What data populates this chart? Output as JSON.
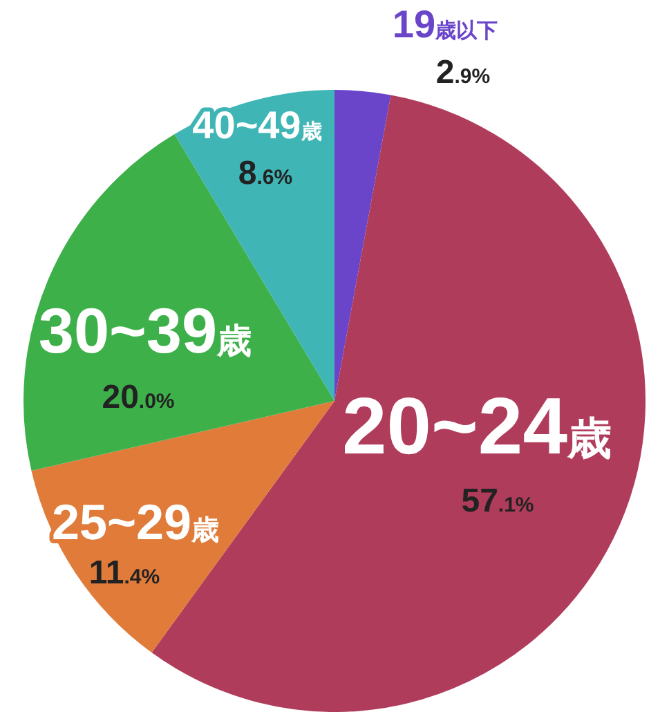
{
  "chart_data": {
    "type": "pie",
    "categories": [
      "19歳以下",
      "20~24歳",
      "25~29歳",
      "30~39歳",
      "40~49歳"
    ],
    "values": [
      2.9,
      57.1,
      11.4,
      20.0,
      8.6
    ],
    "value_labels": [
      "2.9%",
      "57.1%",
      "11.4%",
      "20.0%",
      "8.6%"
    ],
    "colors": [
      "#6a45c9",
      "#b03c5c",
      "#e07b3a",
      "#3db04a",
      "#3fb5b5"
    ]
  }
}
